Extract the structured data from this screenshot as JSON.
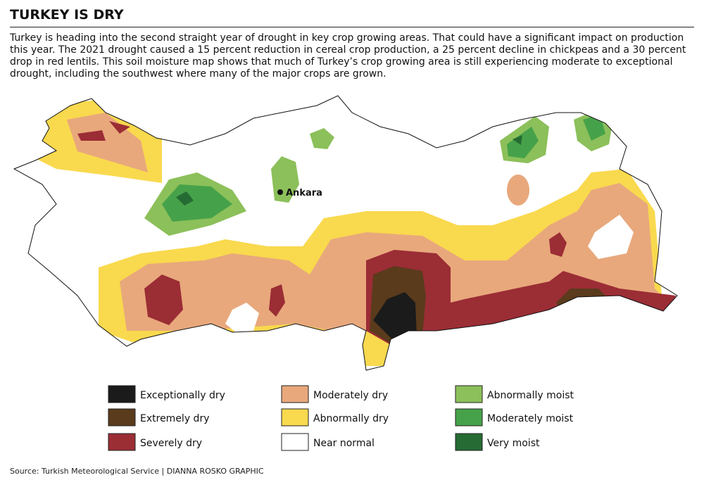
{
  "header": {
    "title": "TURKEY IS DRY",
    "description": "Turkey is heading into the second straight year of drought in key crop growing areas. That could have a significant impact on production this year. The 2021 drought caused a 15 percent reduction in cereal crop production, a 25 percent decline in chickpeas and a 30 percent drop in red lentils. This soil moisture map shows that much of Turkey’s crop growing area is still experiencing moderate to exceptional drought, including the southwest where many of the major crops are grown."
  },
  "map": {
    "city": "Ankara"
  },
  "legend": {
    "items": [
      {
        "label": "Exceptionally dry",
        "color": "#1b1b1b"
      },
      {
        "label": "Extremely dry",
        "color": "#5a3b1c"
      },
      {
        "label": "Severely dry",
        "color": "#9b2d35"
      },
      {
        "label": "Moderately dry",
        "color": "#e8a87c"
      },
      {
        "label": "Abnormally dry",
        "color": "#f9d94e"
      },
      {
        "label": "Near normal",
        "color": "#ffffff"
      },
      {
        "label": "Abnormally moist",
        "color": "#8cc05a"
      },
      {
        "label": "Moderately moist",
        "color": "#46a24a"
      },
      {
        "label": "Very moist",
        "color": "#256b33"
      }
    ]
  },
  "footer": {
    "source": "Source: Turkish Meteorological Service  |  DIANNA ROSKO GRAPHIC"
  }
}
